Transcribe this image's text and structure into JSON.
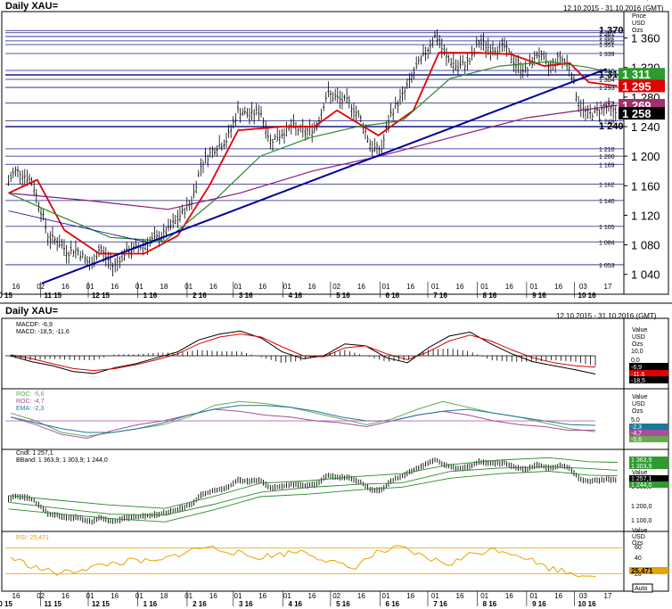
{
  "main": {
    "title": "Daily XAU=",
    "range": "12.10.2015 - 31.10.2016 (GMT)",
    "axis_head": [
      "Price",
      "USD",
      "Ozs"
    ]
  },
  "lower": {
    "title": "Daily XAU=",
    "range": "12.10.2015 - 31.10.2016 (GMT)"
  },
  "value_head": [
    "Value",
    "USD",
    "Ozs"
  ],
  "colors": {
    "price": "#000000",
    "ma_short": "#e00000",
    "ma_mid": "#2a8a2a",
    "ma_long": "#8a1a7a",
    "trend": "#000099",
    "macd": "#000000",
    "macd_signal": "#e00000",
    "roc1": "#6aa84f",
    "roc2": "#a64d9c",
    "ema": "#1a7a9a",
    "rsi": "#e6a400",
    "badge_green": "#2f9a2f",
    "badge_red": "#e00000",
    "badge_purple": "#a0306e",
    "badge_black": "#000000"
  },
  "chart_data": [
    {
      "type": "candlestick",
      "title": "Daily XAU=",
      "ylabel": "Price USD Ozs",
      "ylim": [
        1030,
        1380
      ],
      "y_ticks": [
        1040,
        1080,
        1120,
        1160,
        1200,
        1240,
        1280,
        1320,
        1360
      ],
      "y_tick_labels": [
        "1 040",
        "1 080",
        "1 120",
        "1 160",
        "1 200",
        "1 240",
        "1 280",
        "1 320",
        "1 360"
      ],
      "horizontal_levels": [
        {
          "value": 1370,
          "label": "1 370"
        },
        {
          "value": 1367,
          "label": "1 367"
        },
        {
          "value": 1362,
          "label": "1 362"
        },
        {
          "value": 1356,
          "label": "1 356"
        },
        {
          "value": 1351,
          "label": "1 351"
        },
        {
          "value": 1339,
          "label": "1 339"
        },
        {
          "value": 1316,
          "label": "1 316"
        },
        {
          "value": 1310,
          "label": "1 310"
        },
        {
          "value": 1304,
          "label": "1 304"
        },
        {
          "value": 1293,
          "label": "1 293"
        },
        {
          "value": 1272,
          "label": "1 272"
        },
        {
          "value": 1248,
          "label": "1 248"
        },
        {
          "value": 1240,
          "label": "1 240"
        },
        {
          "value": 1210,
          "label": "1 210"
        },
        {
          "value": 1200,
          "label": "1 200"
        },
        {
          "value": 1189,
          "label": "1 189"
        },
        {
          "value": 1162,
          "label": "1 162"
        },
        {
          "value": 1140,
          "label": "1 140"
        },
        {
          "value": 1105,
          "label": "1 105"
        },
        {
          "value": 1084,
          "label": "1 084"
        },
        {
          "value": 1053,
          "label": "1 053"
        }
      ],
      "badges": [
        {
          "value": 1311,
          "label": "1 311",
          "color": "#2f9a2f"
        },
        {
          "value": 1295,
          "label": "1 295",
          "color": "#e00000"
        },
        {
          "value": 1269,
          "label": "1 269",
          "color": "#a0306e"
        },
        {
          "value": 1258,
          "label": "1 258",
          "color": "#000000"
        }
      ],
      "x_day_labels": [
        "16",
        "02",
        "16",
        "01",
        "16",
        "01",
        "18",
        "01",
        "16",
        "01",
        "16",
        "01",
        "16",
        "02",
        "16",
        "01",
        "16",
        "01",
        "16",
        "01",
        "16",
        "01",
        "16",
        "03",
        "17"
      ],
      "x_month_labels": [
        "10 15",
        "11 15",
        "12 15",
        "1 16",
        "2 16",
        "3 16",
        "4 16",
        "5 16",
        "6 16",
        "7 16",
        "8 16",
        "9 16",
        "10 16"
      ],
      "x_months": [
        "2015-10",
        "2015-11",
        "2015-12",
        "2016-01",
        "2016-02",
        "2016-03",
        "2016-04",
        "2016-05",
        "2016-06",
        "2016-07",
        "2016-08",
        "2016-09",
        "2016-10"
      ],
      "price_path": [
        [
          "2015-10-12",
          1165
        ],
        [
          "2015-10-16",
          1180
        ],
        [
          "2015-10-20",
          1178
        ],
        [
          "2015-10-27",
          1165
        ],
        [
          "2015-10-30",
          1142
        ],
        [
          "2015-11-03",
          1115
        ],
        [
          "2015-11-06",
          1090
        ],
        [
          "2015-11-12",
          1085
        ],
        [
          "2015-11-18",
          1070
        ],
        [
          "2015-11-24",
          1074
        ],
        [
          "2015-12-03",
          1050
        ],
        [
          "2015-12-08",
          1075
        ],
        [
          "2015-12-17",
          1050
        ],
        [
          "2015-12-23",
          1068
        ],
        [
          "2016-01-05",
          1080
        ],
        [
          "2016-01-12",
          1088
        ],
        [
          "2016-01-18",
          1095
        ],
        [
          "2016-01-26",
          1115
        ],
        [
          "2016-02-04",
          1140
        ],
        [
          "2016-02-10",
          1190
        ],
        [
          "2016-02-18",
          1210
        ],
        [
          "2016-02-26",
          1222
        ],
        [
          "2016-03-04",
          1262
        ],
        [
          "2016-03-11",
          1255
        ],
        [
          "2016-03-18",
          1262
        ],
        [
          "2016-03-24",
          1220
        ],
        [
          "2016-03-31",
          1230
        ],
        [
          "2016-04-07",
          1240
        ],
        [
          "2016-04-15",
          1232
        ],
        [
          "2016-04-22",
          1240
        ],
        [
          "2016-04-29",
          1285
        ],
        [
          "2016-05-05",
          1278
        ],
        [
          "2016-05-13",
          1272
        ],
        [
          "2016-05-20",
          1250
        ],
        [
          "2016-05-27",
          1210
        ],
        [
          "2016-06-02",
          1210
        ],
        [
          "2016-06-08",
          1258
        ],
        [
          "2016-06-16",
          1285
        ],
        [
          "2016-06-24",
          1320
        ],
        [
          "2016-07-01",
          1345
        ],
        [
          "2016-07-06",
          1365
        ],
        [
          "2016-07-12",
          1335
        ],
        [
          "2016-07-20",
          1320
        ],
        [
          "2016-07-28",
          1330
        ],
        [
          "2016-08-02",
          1355
        ],
        [
          "2016-08-10",
          1345
        ],
        [
          "2016-08-18",
          1348
        ],
        [
          "2016-08-25",
          1325
        ],
        [
          "2016-09-01",
          1315
        ],
        [
          "2016-09-08",
          1340
        ],
        [
          "2016-09-15",
          1320
        ],
        [
          "2016-09-22",
          1334
        ],
        [
          "2016-09-28",
          1322
        ],
        [
          "2016-10-04",
          1268
        ],
        [
          "2016-10-10",
          1256
        ],
        [
          "2016-10-17",
          1262
        ],
        [
          "2016-10-21",
          1266
        ],
        [
          "2016-10-28",
          1258
        ]
      ],
      "series": [
        {
          "name": "",
          "color": "#e00000",
          "values": [
            [
              "2015-10-12",
              1150
            ],
            [
              "2015-10-30",
              1168
            ],
            [
              "2015-11-16",
              1100
            ],
            [
              "2015-12-08",
              1068
            ],
            [
              "2016-01-05",
              1068
            ],
            [
              "2016-01-26",
              1092
            ],
            [
              "2016-02-15",
              1160
            ],
            [
              "2016-03-04",
              1235
            ],
            [
              "2016-04-01",
              1240
            ],
            [
              "2016-04-21",
              1240
            ],
            [
              "2016-05-05",
              1262
            ],
            [
              "2016-05-31",
              1228
            ],
            [
              "2016-06-22",
              1262
            ],
            [
              "2016-07-08",
              1340
            ],
            [
              "2016-08-01",
              1340
            ],
            [
              "2016-08-22",
              1338
            ],
            [
              "2016-09-12",
              1322
            ],
            [
              "2016-09-28",
              1326
            ],
            [
              "2016-10-10",
              1300
            ],
            [
              "2016-10-28",
              1295
            ]
          ]
        },
        {
          "name": "",
          "color": "#2a8a2a",
          "values": [
            [
              "2015-10-12",
              1150
            ],
            [
              "2015-11-12",
              1120
            ],
            [
              "2015-12-15",
              1090
            ],
            [
              "2016-01-18",
              1085
            ],
            [
              "2016-02-18",
              1140
            ],
            [
              "2016-03-18",
              1200
            ],
            [
              "2016-04-18",
              1225
            ],
            [
              "2016-05-18",
              1240
            ],
            [
              "2016-06-15",
              1248
            ],
            [
              "2016-07-15",
              1305
            ],
            [
              "2016-08-15",
              1322
            ],
            [
              "2016-09-15",
              1328
            ],
            [
              "2016-10-10",
              1320
            ],
            [
              "2016-10-28",
              1311
            ]
          ]
        },
        {
          "name": "",
          "color": "#8a1a7a",
          "values": [
            [
              "2015-10-12",
              1150
            ],
            [
              "2015-12-01",
              1140
            ],
            [
              "2016-01-20",
              1128
            ],
            [
              "2016-03-05",
              1150
            ],
            [
              "2016-04-20",
              1180
            ],
            [
              "2016-06-01",
              1200
            ],
            [
              "2016-07-15",
              1225
            ],
            [
              "2016-09-01",
              1252
            ],
            [
              "2016-10-28",
              1269
            ]
          ]
        }
      ],
      "trend_lines": [
        {
          "from": [
            "2015-11-02",
            1028
          ],
          "to": [
            "2016-10-21",
            1318
          ]
        },
        {
          "from": [
            "2015-10-12",
            1126
          ],
          "to": [
            "2016-01-10",
            1082
          ]
        }
      ]
    },
    {
      "type": "line",
      "title": "MACD",
      "legend": [
        "MACDF: -6,9",
        "MACD: -18,5; -11,6"
      ],
      "y_tick_labels": [
        "10,0",
        "0,0",
        "-10,0"
      ],
      "ylim": [
        -28,
        28
      ],
      "badges": [
        {
          "label": "-6,9",
          "color": "#000000"
        },
        {
          "label": "-11,6",
          "color": "#e00000"
        },
        {
          "label": "-18,5",
          "color": "#000000"
        }
      ],
      "series": [
        {
          "name": "MACD",
          "values": [
            0,
            -6,
            -10,
            -16,
            -18,
            -12,
            -8,
            -2,
            4,
            16,
            22,
            25,
            18,
            4,
            -3,
            0,
            12,
            10,
            -2,
            -7,
            8,
            20,
            24,
            12,
            2,
            -6,
            -10,
            -14,
            -18.5
          ]
        },
        {
          "name": "signal",
          "values": [
            1,
            -3,
            -8,
            -13,
            -15,
            -13,
            -9,
            -4,
            2,
            12,
            19,
            22,
            19,
            9,
            0,
            -1,
            8,
            10,
            2,
            -4,
            4,
            15,
            21,
            15,
            6,
            -2,
            -7,
            -10,
            -11.6
          ]
        }
      ]
    },
    {
      "type": "line",
      "title": "ROC",
      "legend": [
        "ROC: -5,6",
        "ROC: -4,7",
        "EMA: -2,3"
      ],
      "y_tick_labels": [
        "5,0",
        "0,0"
      ],
      "ylim": [
        -12,
        12
      ],
      "badges": [
        {
          "label": "-2,3",
          "color": "#1a7a9a"
        },
        {
          "label": "-4,7",
          "color": "#a64d9c"
        },
        {
          "label": "-5,6",
          "color": "#6aa84f"
        }
      ],
      "series": [
        {
          "name": "ROC",
          "values": [
            4,
            0,
            -6,
            -8,
            -6,
            -4,
            -2,
            2,
            8,
            10,
            9,
            7,
            4,
            1,
            -2,
            1,
            6,
            10,
            7,
            4,
            2,
            -1,
            -4,
            -5.6
          ]
        },
        {
          "name": "ROC",
          "values": [
            2,
            -2,
            -7,
            -9,
            -5,
            -2,
            0,
            3,
            6,
            5,
            3,
            2,
            0,
            -1,
            -3,
            0,
            3,
            5,
            3,
            0,
            -2,
            -3,
            -5,
            -4.7
          ]
        },
        {
          "name": "EMA",
          "values": [
            2,
            -1,
            -4,
            -6,
            -6,
            -4,
            -1,
            3,
            6,
            8,
            8,
            7,
            5,
            2,
            0,
            0,
            3,
            5,
            6,
            4,
            2,
            0,
            -2,
            -2.3
          ]
        }
      ]
    },
    {
      "type": "line",
      "title": "Cndl",
      "legend": [
        "Cndl: 1 257,1",
        "BBand: 1 363,9; 1 303,9; 1 244,0"
      ],
      "y_tick_labels": [
        "1 300,0",
        "1 200,0",
        "1 100,0"
      ],
      "ylim": [
        1030,
        1380
      ],
      "badges": [
        {
          "label": "1 363,9",
          "color": "#2f9a2f"
        },
        {
          "label": "1 303,9",
          "color": "#2f9a2f"
        },
        {
          "label": "1 257,1",
          "color": "#000000"
        },
        {
          "label": "1 244,0",
          "color": "#2f9a2f"
        }
      ]
    },
    {
      "type": "line",
      "title": "RSI",
      "legend": [
        "RSI: 25,471"
      ],
      "y_tick_labels": [
        "60",
        "40",
        "20"
      ],
      "ylim": [
        10,
        90
      ],
      "levels": [
        70,
        30
      ],
      "badges": [
        {
          "label": "25,471",
          "color": "#e6a400"
        }
      ],
      "series": [
        {
          "name": "RSI",
          "values": [
            55,
            40,
            30,
            38,
            45,
            50,
            48,
            62,
            72,
            65,
            55,
            60,
            66,
            50,
            38,
            62,
            70,
            55,
            45,
            62,
            68,
            58,
            40,
            32,
            25.471
          ]
        }
      ],
      "auto_label": "Auto"
    }
  ]
}
